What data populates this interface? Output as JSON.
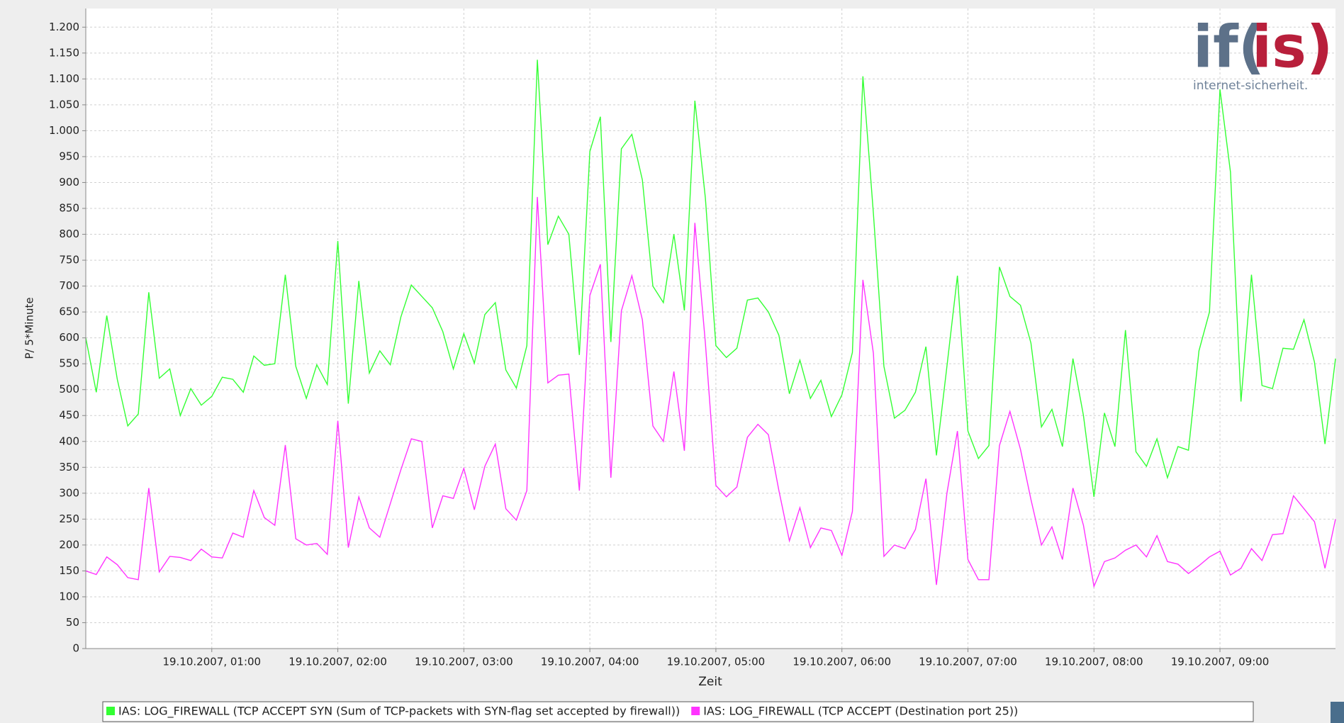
{
  "chart_data": {
    "type": "line",
    "xlabel": "Zeit",
    "ylabel": "P/ 5*Minute",
    "logo": {
      "prefix": "if(",
      "accent": "is)",
      "tagline": "internet-sicherheit."
    },
    "x": [
      0,
      5,
      10,
      15,
      20,
      25,
      30,
      35,
      40,
      45,
      50,
      55,
      60,
      65,
      70,
      75,
      80,
      85,
      90,
      95,
      100,
      105,
      110,
      115,
      120,
      125,
      130,
      135,
      140,
      145,
      150,
      155,
      160,
      165,
      170,
      175,
      180,
      185,
      190,
      195,
      200,
      205,
      210,
      215,
      220,
      225,
      230,
      235,
      240,
      245,
      250,
      255,
      260,
      265,
      270,
      275,
      280,
      285,
      290,
      295,
      300,
      305,
      310,
      315,
      320,
      325,
      330,
      335,
      340,
      345,
      350,
      355,
      360,
      365,
      370,
      375,
      380,
      385,
      390,
      395,
      400,
      405,
      410,
      415,
      420,
      425,
      430,
      435,
      440,
      445,
      450,
      455,
      460,
      465,
      470,
      475,
      480,
      485,
      490,
      495,
      500,
      505,
      510,
      515,
      520,
      525,
      530,
      535,
      540,
      545,
      550,
      555,
      560,
      565,
      570,
      575,
      580,
      585,
      590,
      595
    ],
    "xlim": [
      0,
      595
    ],
    "xticks": [
      {
        "value": 60,
        "label": "19.10.2007, 01:00"
      },
      {
        "value": 120,
        "label": "19.10.2007, 02:00"
      },
      {
        "value": 180,
        "label": "19.10.2007, 03:00"
      },
      {
        "value": 240,
        "label": "19.10.2007, 04:00"
      },
      {
        "value": 300,
        "label": "19.10.2007, 05:00"
      },
      {
        "value": 360,
        "label": "19.10.2007, 06:00"
      },
      {
        "value": 420,
        "label": "19.10.2007, 07:00"
      },
      {
        "value": 480,
        "label": "19.10.2007, 08:00"
      },
      {
        "value": 540,
        "label": "19.10.2007, 09:00"
      }
    ],
    "ylim": [
      0,
      1236
    ],
    "yticks": [
      0,
      50,
      100,
      150,
      200,
      250,
      300,
      350,
      400,
      450,
      500,
      550,
      600,
      650,
      700,
      750,
      800,
      850,
      900,
      950,
      {
        "value": 1000,
        "label": "1.000"
      },
      {
        "value": 1050,
        "label": "1.050"
      },
      {
        "value": 1100,
        "label": "1.100"
      },
      {
        "value": 1150,
        "label": "1.150"
      },
      {
        "value": 1200,
        "label": "1.200"
      }
    ],
    "grid": true,
    "series": [
      {
        "name": "IAS: LOG_FIREWALL (TCP ACCEPT SYN (Sum of TCP-packets with SYN-flag set accepted by firewall))",
        "color": "#33ff33",
        "values": [
          600,
          495,
          643,
          520,
          430,
          453,
          688,
          522,
          540,
          450,
          502,
          470,
          487,
          524,
          520,
          495,
          565,
          547,
          550,
          722,
          545,
          483,
          548,
          510,
          787,
          473,
          710,
          532,
          575,
          548,
          640,
          702,
          680,
          658,
          612,
          540,
          608,
          551,
          645,
          668,
          538,
          503,
          585,
          1137,
          780,
          835,
          800,
          567,
          960,
          1027,
          592,
          965,
          993,
          905,
          700,
          668,
          800,
          653,
          1058,
          870,
          585,
          562,
          580,
          673,
          677,
          650,
          605,
          492,
          557,
          483,
          518,
          448,
          490,
          572,
          1105,
          840,
          545,
          445,
          460,
          495,
          583,
          373,
          545,
          720,
          420,
          367,
          392,
          737,
          680,
          663,
          590,
          428,
          462,
          390,
          560,
          450,
          293,
          455,
          390,
          615,
          380,
          352,
          405,
          330,
          390,
          383,
          575,
          650,
          1080,
          920,
          477,
          722,
          508,
          502,
          580,
          578,
          635,
          553,
          395,
          560
        ]
      },
      {
        "name": "IAS: LOG_FIREWALL (TCP ACCEPT (Destination port 25))",
        "color": "#ff33ff",
        "values": [
          150,
          143,
          177,
          162,
          137,
          133,
          310,
          148,
          178,
          176,
          170,
          192,
          177,
          175,
          223,
          215,
          305,
          253,
          238,
          393,
          212,
          200,
          203,
          182,
          440,
          195,
          293,
          233,
          215,
          280,
          345,
          405,
          400,
          233,
          295,
          290,
          348,
          268,
          352,
          395,
          270,
          248,
          305,
          872,
          513,
          528,
          530,
          305,
          682,
          742,
          330,
          652,
          720,
          635,
          430,
          400,
          535,
          382,
          822,
          590,
          315,
          293,
          312,
          408,
          433,
          413,
          305,
          208,
          272,
          195,
          233,
          228,
          180,
          265,
          712,
          570,
          178,
          200,
          193,
          230,
          328,
          123,
          300,
          420,
          172,
          133,
          133,
          392,
          458,
          385,
          288,
          200,
          235,
          172,
          310,
          238,
          120,
          168,
          175,
          190,
          200,
          177,
          218,
          168,
          163,
          145,
          160,
          177,
          188,
          142,
          155,
          193,
          170,
          220,
          222,
          295,
          270,
          245,
          155,
          250
        ]
      }
    ]
  }
}
